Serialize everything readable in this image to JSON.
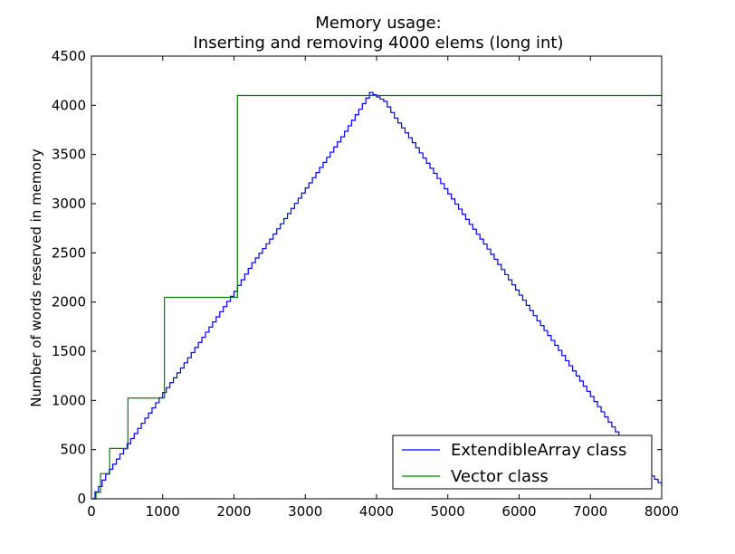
{
  "chart_data": {
    "type": "line",
    "title": "Memory usage:",
    "subtitle": "Inserting and removing 4000 elems (long int)",
    "xlabel": "",
    "ylabel": "Number of words reserved in memory",
    "xlim": [
      0,
      8000
    ],
    "ylim": [
      0,
      4500
    ],
    "x_ticks": [
      0,
      1000,
      2000,
      3000,
      4000,
      5000,
      6000,
      7000,
      8000
    ],
    "y_ticks": [
      0,
      500,
      1000,
      1500,
      2000,
      2500,
      3000,
      3500,
      4000,
      4500
    ],
    "grid": false,
    "legend_position": "lower-right",
    "series": [
      {
        "name": "ExtendibleArray class",
        "color": "#0000ff",
        "style": "staircase",
        "x": [
          0,
          50,
          100,
          150,
          200,
          250,
          500,
          750,
          1000,
          1250,
          1500,
          1750,
          2000,
          2250,
          2500,
          2750,
          3000,
          3250,
          3500,
          3750,
          3900,
          4100,
          4250,
          4500,
          4750,
          5000,
          5250,
          5500,
          5750,
          6000,
          6250,
          6500,
          6750,
          7000,
          7250,
          7500,
          7750,
          8000
        ],
        "y": [
          0,
          70,
          125,
          190,
          250,
          300,
          560,
          820,
          1080,
          1330,
          1590,
          1850,
          2110,
          2400,
          2640,
          2900,
          3160,
          3420,
          3680,
          3960,
          4130,
          4040,
          3870,
          3620,
          3360,
          3100,
          2840,
          2590,
          2330,
          2070,
          1810,
          1560,
          1300,
          1040,
          780,
          530,
          300,
          130
        ]
      },
      {
        "name": "Vector class",
        "color": "#008000",
        "style": "step",
        "x": [
          0,
          64,
          128,
          256,
          512,
          1024,
          2048,
          4000,
          8000
        ],
        "y": [
          0,
          64,
          256,
          512,
          1024,
          2048,
          4100,
          4100,
          4100
        ]
      }
    ]
  }
}
